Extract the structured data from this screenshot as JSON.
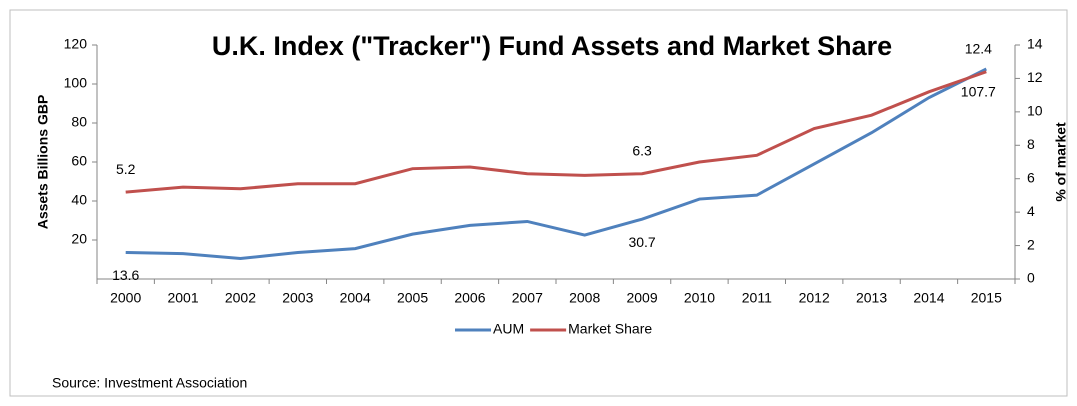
{
  "chart_data": {
    "type": "line",
    "title": "U.K. Index (\"Tracker\") Fund Assets and Market Share",
    "y_label": "Assets Billions GBP",
    "y2_label": "% of market",
    "source": "Source: Investment Association",
    "categories": [
      "2000",
      "2001",
      "2002",
      "2003",
      "2004",
      "2005",
      "2006",
      "2007",
      "2008",
      "2009",
      "2010",
      "2011",
      "2012",
      "2013",
      "2014",
      "2015"
    ],
    "ylim": [
      0,
      120
    ],
    "yticks": [
      20,
      40,
      60,
      80,
      100,
      120
    ],
    "y2lim": [
      0,
      14
    ],
    "y2ticks": [
      0,
      2,
      4,
      6,
      8,
      10,
      12,
      14
    ],
    "series": [
      {
        "name": "AUM",
        "color": "#4f81bd",
        "values": [
          13.6,
          13,
          10.5,
          13.6,
          15.6,
          23,
          27.5,
          29.5,
          22.5,
          30.7,
          41,
          43,
          59,
          75,
          93,
          107.7
        ],
        "value_labels": [
          "13.6",
          null,
          null,
          null,
          null,
          null,
          null,
          null,
          null,
          "30.7",
          null,
          null,
          null,
          null,
          null,
          "107.7"
        ]
      },
      {
        "name": "Market Share",
        "color": "#c0504d",
        "axis": "y2",
        "values": [
          5.2,
          5.5,
          5.4,
          5.7,
          5.7,
          6.6,
          6.7,
          6.3,
          6.2,
          6.3,
          7.0,
          7.4,
          9.0,
          9.8,
          11.2,
          12.4
        ],
        "value_labels": [
          "5.2",
          null,
          null,
          null,
          null,
          null,
          null,
          null,
          null,
          "6.3",
          null,
          null,
          null,
          null,
          null,
          "12.4"
        ]
      }
    ]
  }
}
